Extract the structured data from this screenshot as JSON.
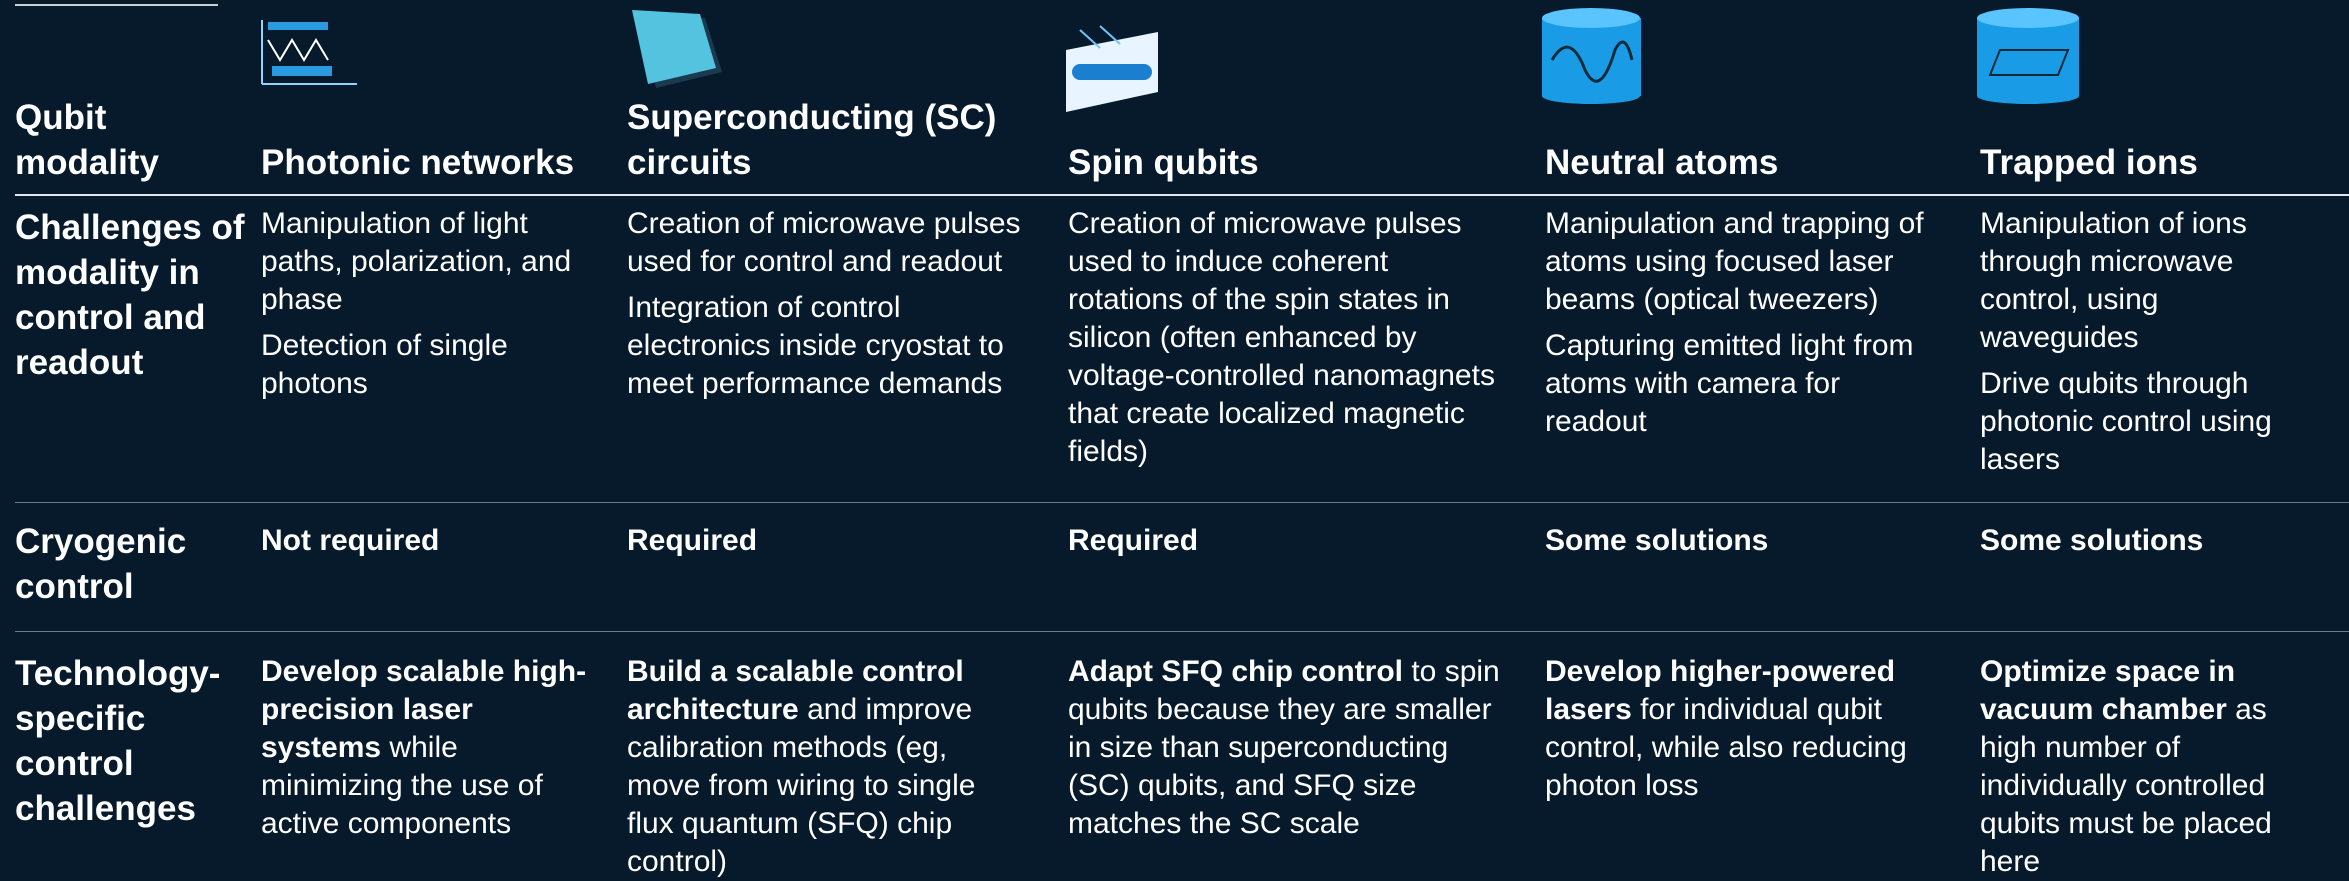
{
  "header": {
    "row_label": "Qubit modality"
  },
  "columns": [
    {
      "name": "Photonic networks"
    },
    {
      "name": "Superconducting (SC) circuits"
    },
    {
      "name": "Spin qubits"
    },
    {
      "name": "Neutral atoms"
    },
    {
      "name": "Trapped ions"
    }
  ],
  "rows": {
    "challenges": {
      "label": "Challenges of modality in control and readout",
      "cells": [
        [
          "Manipulation of light paths, polarization, and phase",
          "Detection of single photons"
        ],
        [
          "Creation of microwave pulses used for control and readout",
          "Integration of control electronics inside cryostat to meet performance demands"
        ],
        [
          "Creation of microwave pulses used to induce coherent rotations of the spin states in silicon (often enhanced by voltage-controlled nanomagnets that create localized magnetic fields)"
        ],
        [
          "Manipulation and trapping of atoms using focused laser beams (optical tweezers)",
          "Capturing emitted light from atoms with camera for readout"
        ],
        [
          "Manipulation of ions through microwave control, using waveguides",
          "Drive qubits through photonic control using lasers"
        ]
      ]
    },
    "cryogenic": {
      "label": "Cryogenic control",
      "cells": [
        "Not required",
        "Required",
        "Required",
        "Some solutions",
        "Some solutions"
      ]
    },
    "technology": {
      "label": "Technology-specific control challenges",
      "cells": [
        {
          "strong": "Develop scalable high-precision laser systems",
          "rest": " while minimizing the use of active components"
        },
        {
          "strong": "Build a scalable control architecture",
          "rest": " and improve calibration methods (eg, move from wiring to single flux quantum (SFQ) chip control)"
        },
        {
          "strong": "Adapt SFQ chip control",
          "rest": " to spin qubits because they are smaller in size than superconducting (SC) qubits, and SFQ size matches the SC scale"
        },
        {
          "strong": "Develop higher-powered lasers",
          "rest": " for individual qubit control, while also reducing photon loss"
        },
        {
          "strong": "Optimize space in vacuum chamber",
          "rest": " as high number of individually controlled qubits must be placed here"
        }
      ]
    }
  }
}
